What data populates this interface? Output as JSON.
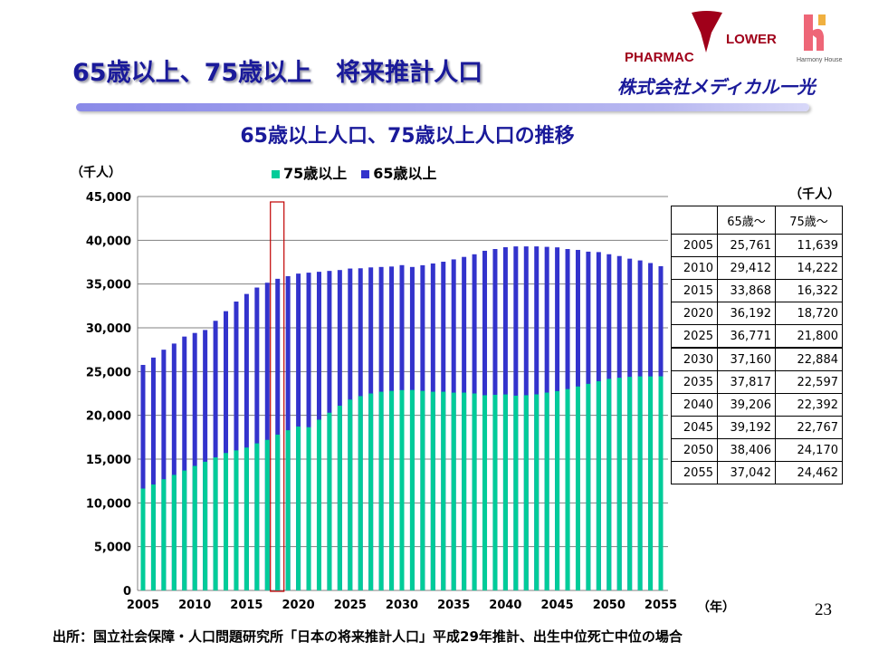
{
  "slide": {
    "title": "65歳以上、75歳以上　将来推計人口",
    "page_number": "23",
    "source": "出所：国立社会保障・人口問題研究所「日本の将来推計人口」平成29年推計、出生中位死亡中位の場合",
    "logos": {
      "pharmacy_flower": "PHARMAC FLOWER",
      "harmony": "Harmony House",
      "medical": "株式会社メディカル一光"
    }
  },
  "chart_data": {
    "type": "bar",
    "stacked": false,
    "title": "65歳以上人口、75歳以上人口の推移",
    "ylabel": "（千人）",
    "xlabel": "（年）",
    "ylim": [
      0,
      45000
    ],
    "yticks": [
      0,
      5000,
      10000,
      15000,
      20000,
      25000,
      30000,
      35000,
      40000,
      45000
    ],
    "ytick_labels": [
      "0",
      "5,000",
      "10,000",
      "15,000",
      "20,000",
      "25,000",
      "30,000",
      "35,000",
      "40,000",
      "45,000"
    ],
    "xtick_labels": [
      "2005",
      "2010",
      "2015",
      "2020",
      "2025",
      "2030",
      "2035",
      "2040",
      "2045",
      "2050",
      "2055"
    ],
    "grid": true,
    "legend_placement": "top",
    "highlight_year": 2018,
    "highlight_color": "#c00000",
    "x": [
      2005,
      2006,
      2007,
      2008,
      2009,
      2010,
      2011,
      2012,
      2013,
      2014,
      2015,
      2016,
      2017,
      2018,
      2019,
      2020,
      2021,
      2022,
      2023,
      2024,
      2025,
      2026,
      2027,
      2028,
      2029,
      2030,
      2031,
      2032,
      2033,
      2034,
      2035,
      2036,
      2037,
      2038,
      2039,
      2040,
      2041,
      2042,
      2043,
      2044,
      2045,
      2046,
      2047,
      2048,
      2049,
      2050,
      2051,
      2052,
      2053,
      2054,
      2055
    ],
    "series": [
      {
        "name": "75歳以上",
        "color": "#00cc99",
        "values": [
          11639,
          12100,
          12700,
          13200,
          13700,
          14222,
          14700,
          15200,
          15700,
          16000,
          16322,
          16800,
          17200,
          17800,
          18300,
          18720,
          18650,
          19500,
          20300,
          21100,
          21800,
          22200,
          22500,
          22700,
          22800,
          22884,
          22900,
          22800,
          22700,
          22700,
          22597,
          22600,
          22500,
          22300,
          22350,
          22392,
          22250,
          22300,
          22400,
          22600,
          22767,
          23000,
          23300,
          23600,
          23900,
          24170,
          24300,
          24400,
          24450,
          24450,
          24462
        ]
      },
      {
        "name": "65歳以上",
        "color": "#3333cc",
        "values": [
          25761,
          26600,
          27500,
          28200,
          29000,
          29412,
          29750,
          30800,
          31900,
          33000,
          33868,
          34600,
          35150,
          35600,
          35900,
          36192,
          36300,
          36400,
          36500,
          36600,
          36771,
          36800,
          36900,
          36950,
          37000,
          37160,
          36950,
          37150,
          37350,
          37550,
          37817,
          38100,
          38400,
          38800,
          39000,
          39206,
          39300,
          39300,
          39300,
          39250,
          39192,
          39000,
          38900,
          38700,
          38650,
          38406,
          38200,
          37900,
          37700,
          37400,
          37042
        ]
      }
    ]
  },
  "table": {
    "unit": "（千人）",
    "headers": [
      "",
      "65歳～",
      "75歳～"
    ],
    "rows": [
      [
        "2005",
        "25,761",
        "11,639"
      ],
      [
        "2010",
        "29,412",
        "14,222"
      ],
      [
        "2015",
        "33,868",
        "16,322"
      ],
      [
        "2020",
        "36,192",
        "18,720"
      ],
      [
        "2025",
        "36,771",
        "21,800"
      ],
      [
        "2030",
        "37,160",
        "22,884"
      ],
      [
        "2035",
        "37,817",
        "22,597"
      ],
      [
        "2040",
        "39,206",
        "22,392"
      ],
      [
        "2045",
        "39,192",
        "22,767"
      ],
      [
        "2050",
        "38,406",
        "24,170"
      ],
      [
        "2055",
        "37,042",
        "24,462"
      ]
    ]
  }
}
